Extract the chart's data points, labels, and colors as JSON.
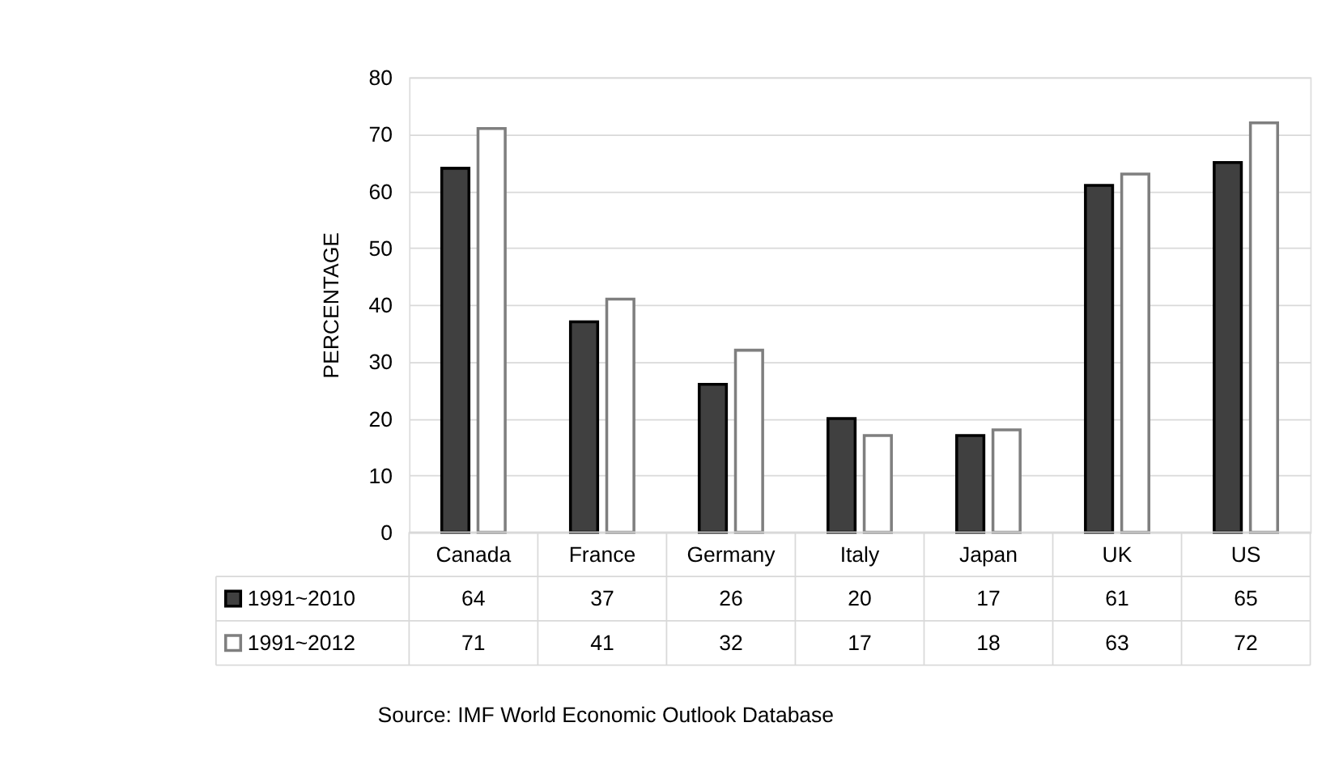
{
  "chart_data": {
    "type": "bar",
    "ylabel": "PERCENTAGE",
    "categories": [
      "Canada",
      "France",
      "Germany",
      "Italy",
      "Japan",
      "UK",
      "US"
    ],
    "series": [
      {
        "name": "1991~2010",
        "color": "#404040",
        "values": [
          64,
          37,
          26,
          20,
          17,
          61,
          65
        ]
      },
      {
        "name": "1991~2012",
        "color": "#ffffff",
        "values": [
          71,
          41,
          32,
          17,
          18,
          63,
          72
        ]
      }
    ],
    "ylim": [
      0,
      80
    ],
    "yticks": [
      0,
      10,
      20,
      30,
      40,
      50,
      60,
      70,
      80
    ],
    "grid": "y",
    "legend": "bottom left",
    "data_labels": true,
    "annotations": [
      "Source: IMF World Economic Outlook Database"
    ]
  }
}
